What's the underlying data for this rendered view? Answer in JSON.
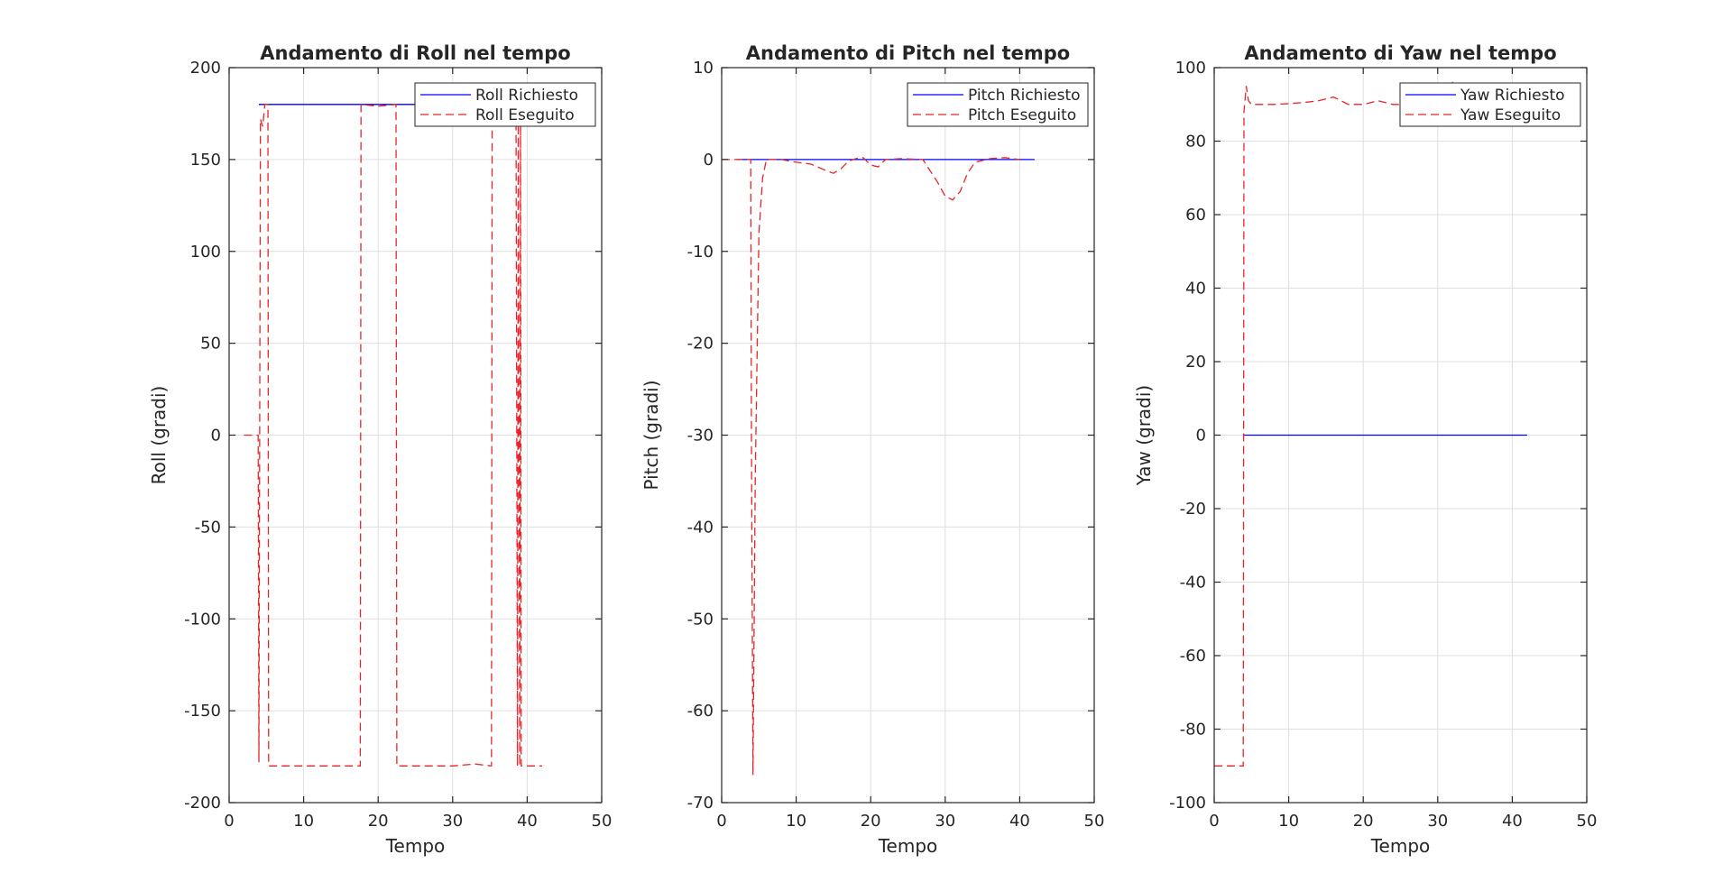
{
  "colors": {
    "requested": "#0000ff",
    "executed": "#e8242a",
    "grid": "#dfdfdf",
    "axis": "#262626"
  },
  "chart_data": [
    {
      "type": "line",
      "title": "Andamento di Roll nel tempo",
      "xlabel": "Tempo",
      "ylabel": "Roll (gradi)",
      "xlim": [
        0,
        50
      ],
      "ylim": [
        -200,
        200
      ],
      "xticks": [
        0,
        10,
        20,
        30,
        40,
        50
      ],
      "yticks": [
        -200,
        -150,
        -100,
        -50,
        0,
        50,
        100,
        150,
        200
      ],
      "grid": true,
      "legend_position": "top-right",
      "series": [
        {
          "name": "Roll Richiesto",
          "style": "solid",
          "x": [
            4,
            42
          ],
          "y": [
            180,
            180
          ]
        },
        {
          "name": "Roll Eseguito",
          "style": "dashed",
          "x": [
            2,
            3.9,
            4.0,
            4.2,
            4.5,
            4.8,
            5.0,
            5.2,
            5.3,
            8,
            12,
            17.6,
            17.7,
            20,
            22.4,
            22.5,
            27,
            30,
            33,
            35.2,
            35.3,
            38,
            38.5,
            38.7,
            38.8,
            39,
            39.1,
            39.2,
            40,
            42
          ],
          "y": [
            0,
            0,
            -178,
            172,
            168,
            180,
            180,
            180,
            -180,
            -180,
            -180,
            -180,
            180,
            179,
            180,
            -180,
            -180,
            -180,
            -179,
            -180,
            180,
            180,
            180,
            -180,
            180,
            -180,
            180,
            -180,
            -180,
            -180
          ]
        }
      ]
    },
    {
      "type": "line",
      "title": "Andamento di Pitch nel tempo",
      "xlabel": "Tempo",
      "ylabel": "Pitch (gradi)",
      "xlim": [
        0,
        50
      ],
      "ylim": [
        -70,
        10
      ],
      "xticks": [
        0,
        10,
        20,
        30,
        40,
        50
      ],
      "yticks": [
        -70,
        -60,
        -50,
        -40,
        -30,
        -20,
        -10,
        0,
        10
      ],
      "grid": true,
      "legend_position": "top-right",
      "series": [
        {
          "name": "Pitch Richiesto",
          "style": "solid",
          "x": [
            2,
            42
          ],
          "y": [
            0,
            0
          ]
        },
        {
          "name": "Pitch Eseguito",
          "style": "dashed",
          "x": [
            0,
            3.9,
            4.0,
            4.2,
            4.5,
            5,
            5.5,
            6,
            8,
            10,
            12,
            14,
            15,
            16,
            17,
            18,
            19,
            20,
            21,
            22,
            24,
            27,
            29,
            30,
            31,
            32,
            33,
            34,
            36,
            38,
            40
          ],
          "y": [
            0,
            0,
            -30,
            -67,
            -35,
            -8,
            -2,
            0,
            0,
            -0.3,
            -0.5,
            -1.2,
            -1.5,
            -1.0,
            -0.2,
            0.1,
            0.2,
            -0.6,
            -0.8,
            0,
            0.1,
            0,
            -2.5,
            -4.0,
            -4.4,
            -3.5,
            -1.5,
            -0.3,
            0.1,
            0.2,
            0
          ]
        }
      ]
    },
    {
      "type": "line",
      "title": "Andamento di Yaw nel tempo",
      "xlabel": "Tempo",
      "ylabel": "Yaw (gradi)",
      "xlim": [
        0,
        50
      ],
      "ylim": [
        -100,
        100
      ],
      "xticks": [
        0,
        10,
        20,
        30,
        40,
        50
      ],
      "yticks": [
        -100,
        -80,
        -60,
        -40,
        -20,
        0,
        20,
        40,
        60,
        80,
        100
      ],
      "grid": true,
      "legend_position": "top-right",
      "series": [
        {
          "name": "Yaw Richiesto",
          "style": "solid",
          "x": [
            4,
            42
          ],
          "y": [
            0,
            0
          ]
        },
        {
          "name": "Yaw Eseguito",
          "style": "dashed",
          "x": [
            0,
            2,
            3.9,
            4.0,
            4.3,
            4.6,
            5,
            6,
            8,
            10,
            12,
            14,
            16,
            18,
            20,
            22,
            24,
            26,
            28,
            30,
            32,
            34
          ],
          "y": [
            -90,
            -90,
            -90,
            88,
            95,
            91,
            90,
            90,
            90,
            90.2,
            90.5,
            91,
            92,
            90,
            90,
            91,
            90,
            90,
            90,
            91,
            96,
            92
          ]
        }
      ]
    }
  ]
}
